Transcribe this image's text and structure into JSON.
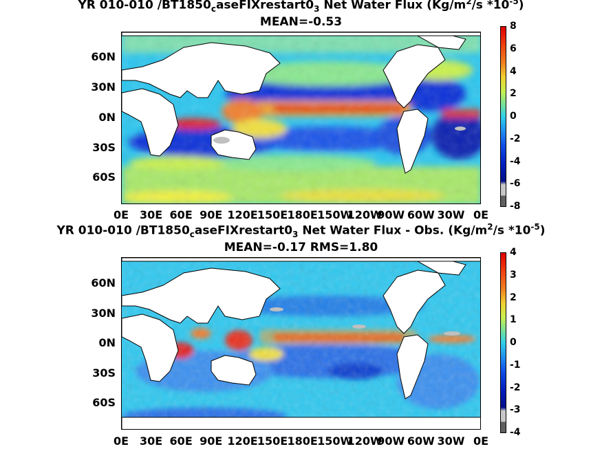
{
  "panels": [
    {
      "title_main": "YR 010-010 /BT1850",
      "title_sub": "c",
      "title_rest": "aseFIXrestart0",
      "title_sub2": "3",
      "title_tail": "  Net Water Flux (Kg/m",
      "title_sup": "2",
      "title_tail2": "/s *10",
      "title_sup2": "-5",
      "title_close": ")",
      "subtitle": "MEAN=-0.53",
      "colorbar_ticks": [
        "8",
        "6",
        "4",
        "2",
        "0",
        "-2",
        "-4",
        "-6",
        "-8"
      ]
    },
    {
      "title_main": "YR 010-010 /BT1850",
      "title_sub": "c",
      "title_rest": "aseFIXrestart0",
      "title_sub2": "3",
      "title_tail": "  Net Water Flux - Obs. (Kg/m",
      "title_sup": "2",
      "title_tail2": "/s *10",
      "title_sup2": "-5",
      "title_close": ")",
      "subtitle": "MEAN=-0.17 RMS=1.80",
      "colorbar_ticks": [
        "4",
        "3",
        "2",
        "1",
        "0",
        "-1",
        "-2",
        "-3",
        "-4"
      ]
    }
  ],
  "lat_labels": [
    "60N",
    "30N",
    "0N",
    "30S",
    "60S"
  ],
  "lon_labels": [
    "0E",
    "30E",
    "60E",
    "90E",
    "120E",
    "150E",
    "180E",
    "150W",
    "120W",
    "90W",
    "60W",
    "30W",
    "0E"
  ],
  "colors": {
    "ocean_base": "#29c8f0",
    "land": "#ffffff",
    "deep_blue": "#0a2fd0",
    "red": "#e01010",
    "yellow": "#f0f040"
  }
}
